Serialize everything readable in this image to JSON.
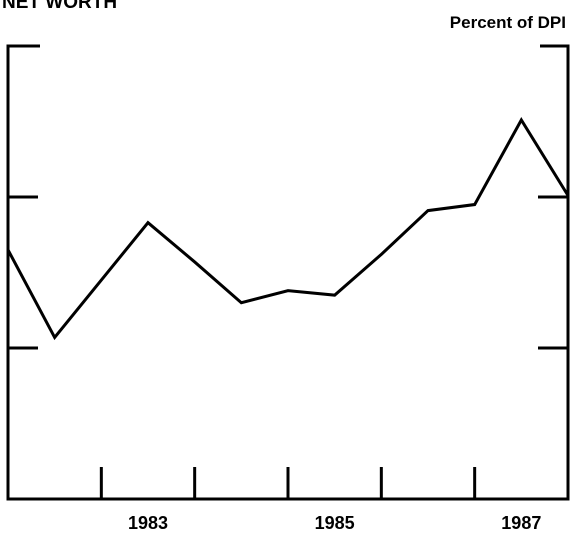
{
  "chart_data": {
    "type": "line",
    "title": "NET WORTH",
    "y_label": "Percent of DPI",
    "x": [
      1982,
      1982.5,
      1983,
      1983.5,
      1984,
      1984.5,
      1985,
      1985.5,
      1986,
      1986.5,
      1987,
      1987.5,
      1988
    ],
    "series": [
      {
        "color": "#000000",
        "values": [
          1.65,
          1.07,
          1.45,
          1.83,
          1.57,
          1.3,
          1.38,
          1.35,
          1.62,
          1.91,
          1.95,
          2.51,
          2.01
        ]
      }
    ],
    "xlim": [
      1982,
      1988
    ],
    "xticks": [
      {
        "value": 1983,
        "label": "1983"
      },
      1984,
      {
        "value": 1985,
        "label": "1985"
      },
      1986,
      {
        "value": 1987,
        "label": "1987"
      }
    ],
    "ylim": [
      0,
      3
    ],
    "yticks": [
      1,
      2
    ]
  }
}
